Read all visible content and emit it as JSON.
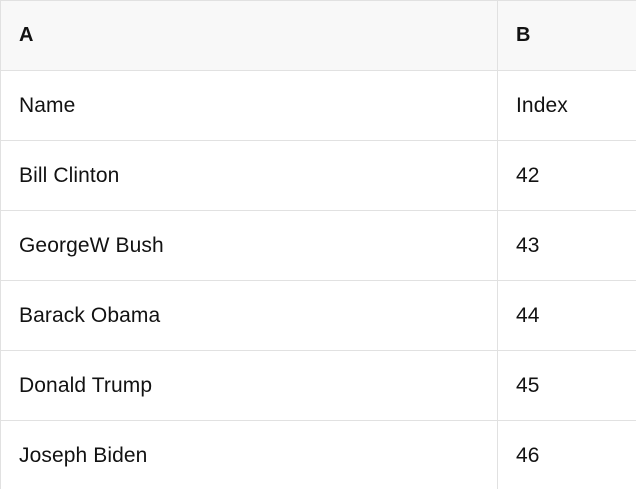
{
  "table": {
    "columns": [
      {
        "label": "A"
      },
      {
        "label": "B"
      }
    ],
    "rows": [
      [
        "Name",
        "Index"
      ],
      [
        "Bill Clinton",
        "42"
      ],
      [
        "GeorgeW Bush",
        "43"
      ],
      [
        "Barack Obama",
        "44"
      ],
      [
        "Donald Trump",
        "45"
      ],
      [
        "Joseph Biden",
        "46"
      ]
    ]
  },
  "colors": {
    "header_bg": "#f8f8f8",
    "border": "#e1e1e1",
    "text": "#121212",
    "row_bg": "#ffffff"
  }
}
